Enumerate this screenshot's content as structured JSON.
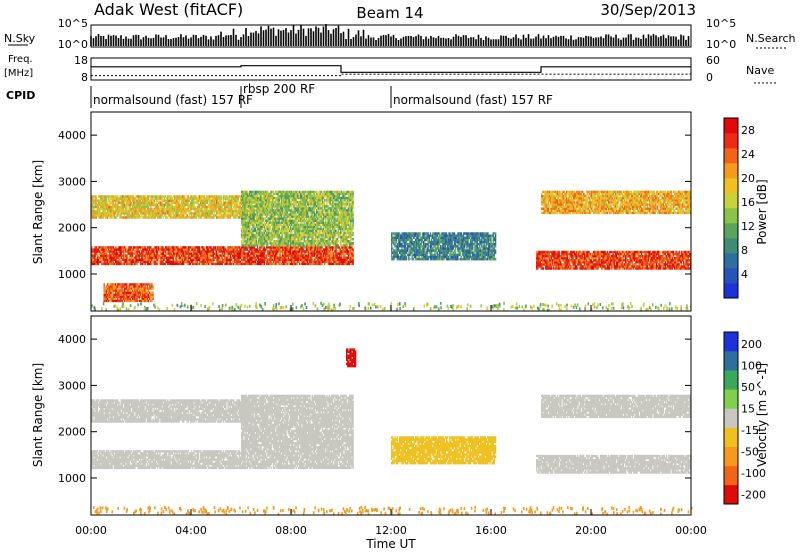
{
  "header": {
    "site": "Adak West (fitACF)",
    "beam": "Beam 14",
    "date": "30/Sep/2013"
  },
  "labels": {
    "nsky": "N.Sky",
    "nsearch": "N.Search",
    "freq_line1": "Freq.",
    "freq_line2": "[MHz]",
    "nave": "Nave",
    "cpid": "CPID",
    "nsky_ticks": [
      "10^5",
      "10^0"
    ],
    "freq_ticks": [
      "18",
      "8"
    ],
    "nave_ticks": [
      "60",
      "0"
    ]
  },
  "cpid_segments": [
    {
      "start_h": 0,
      "end_h": 6,
      "label": "normalsound (fast) 157 RF"
    },
    {
      "start_h": 6,
      "end_h": 12,
      "label": "rbsp 200 RF"
    },
    {
      "start_h": 12,
      "end_h": 24,
      "label": "normalsound (fast) 157 RF"
    }
  ],
  "freq_data": {
    "x_hours": [
      0,
      6,
      10,
      18,
      24
    ],
    "freq_mhz": [
      14,
      14.5,
      11.5,
      14,
      14
    ],
    "nave_x": [
      0,
      10,
      10,
      24
    ],
    "nave": [
      12,
      12,
      16,
      16
    ]
  },
  "chart_data": [
    {
      "type": "heatmap",
      "title": "",
      "xlabel": "Time UT",
      "ylabel": "Slant Range [km]",
      "xlim": [
        0,
        24
      ],
      "ylim": [
        200,
        4500
      ],
      "x_ticks": [
        "00:00",
        "04:00",
        "08:00",
        "12:00",
        "16:00",
        "20:00",
        "00:00"
      ],
      "y_ticks": [
        1000,
        2000,
        3000,
        4000
      ],
      "colorbar": {
        "label": "Power [dB]",
        "ticks": [
          4,
          8,
          12,
          16,
          20,
          24,
          28
        ],
        "range": [
          0,
          30
        ],
        "colors": [
          "#1d32d8",
          "#2752b8",
          "#2f6fa0",
          "#3e8c78",
          "#5aa55a",
          "#8bc24a",
          "#c8d23c",
          "#f0c020",
          "#f59a1e",
          "#f2641a",
          "#ec2c14",
          "#e00a0a"
        ]
      },
      "bands": [
        {
          "t0": 0.0,
          "t1": 10.5,
          "r0": 1200,
          "r1": 1600,
          "v": 26
        },
        {
          "t0": 0.0,
          "t1": 6.5,
          "r0": 2200,
          "r1": 2700,
          "v": 18
        },
        {
          "t0": 0.5,
          "t1": 2.5,
          "r0": 400,
          "r1": 800,
          "v": 24
        },
        {
          "t0": 6.0,
          "t1": 10.5,
          "r0": 1600,
          "r1": 2800,
          "v": 14
        },
        {
          "t0": 12.0,
          "t1": 16.2,
          "r0": 1300,
          "r1": 1900,
          "v": 8
        },
        {
          "t0": 17.8,
          "t1": 24.0,
          "r0": 1100,
          "r1": 1500,
          "v": 26
        },
        {
          "t0": 18.0,
          "t1": 24.0,
          "r0": 2300,
          "r1": 2800,
          "v": 20
        }
      ]
    },
    {
      "type": "heatmap",
      "title": "",
      "xlabel": "Time UT",
      "ylabel": "Slant Range [km]",
      "xlim": [
        0,
        24
      ],
      "ylim": [
        200,
        4500
      ],
      "x_ticks": [
        "00:00",
        "04:00",
        "08:00",
        "12:00",
        "16:00",
        "20:00",
        "00:00"
      ],
      "y_ticks": [
        1000,
        2000,
        3000,
        4000
      ],
      "colorbar": {
        "label": "Velocity [m s^-1]",
        "ticks": [
          200,
          100,
          50,
          15,
          -15,
          -50,
          -100,
          -200
        ],
        "range": [
          -250,
          250
        ],
        "colors": [
          "#e00a0a",
          "#f2641a",
          "#f59a1e",
          "#f0c020",
          "#c8c8c0",
          "#7fd04a",
          "#3aa85a",
          "#2f6fa0",
          "#1d32d8"
        ]
      },
      "bands": [
        {
          "t0": 0.0,
          "t1": 10.5,
          "r0": 1200,
          "r1": 1600,
          "v": 0
        },
        {
          "t0": 0.0,
          "t1": 6.5,
          "r0": 2200,
          "r1": 2700,
          "v": 0
        },
        {
          "t0": 6.0,
          "t1": 10.5,
          "r0": 1600,
          "r1": 2800,
          "v": 0
        },
        {
          "t0": 12.0,
          "t1": 16.2,
          "r0": 1300,
          "r1": 1900,
          "v": -40
        },
        {
          "t0": 17.8,
          "t1": 24.0,
          "r0": 1100,
          "r1": 1500,
          "v": 0
        },
        {
          "t0": 18.0,
          "t1": 24.0,
          "r0": 2300,
          "r1": 2800,
          "v": 0
        },
        {
          "t0": 10.2,
          "t1": 10.6,
          "r0": 3400,
          "r1": 3800,
          "v": -220
        }
      ]
    }
  ]
}
